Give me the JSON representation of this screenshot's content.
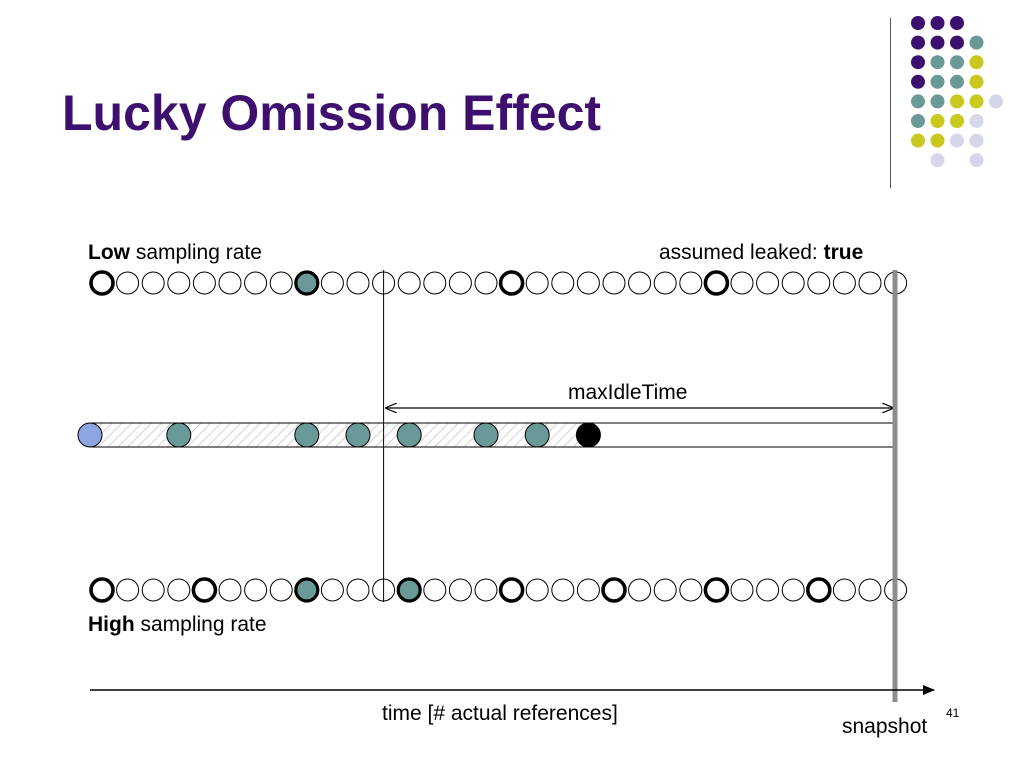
{
  "title": "Lucky Omission Effect",
  "labels": {
    "low_bold": "Low",
    "low_rest": " sampling rate",
    "leaked_prefix": "assumed leaked: ",
    "leaked_value": "true",
    "high_bold": "High",
    "high_rest": " sampling rate",
    "max_idle": "maxIdleTime",
    "time_axis": "time [# actual references]",
    "snapshot": "snapshot",
    "page_number": "41"
  },
  "colors": {
    "title": "#3d1070",
    "purple": "#3d1070",
    "teal": "#6a9a98",
    "yellow": "#c8c81e",
    "lavender": "#d6d6ea",
    "blue": "#8ba6e0",
    "gray_bar": "#8c8c8c"
  },
  "diagram": {
    "references_per_row": 32,
    "low_rate_row": {
      "sampled": [
        0,
        8,
        16,
        24,
        31
      ],
      "sampled_teal": [
        8
      ],
      "sampled_bold": [
        0,
        16,
        24
      ]
    },
    "high_rate_row": {
      "sampled": [
        0,
        4,
        8,
        12,
        16,
        20,
        24,
        28,
        31
      ],
      "sampled_teal": [
        8,
        12
      ],
      "sampled_bold": [
        0,
        4,
        16,
        20,
        24,
        28
      ]
    },
    "object_lifetime": {
      "allocation_color": "blue",
      "teal_references": [
        3,
        8,
        10,
        12,
        15,
        17
      ],
      "last_reference": 19
    }
  },
  "decoration": {
    "rows": [
      [
        "purple",
        "purple",
        "purple"
      ],
      [
        "purple",
        "purple",
        "purple",
        "teal"
      ],
      [
        "purple",
        "teal",
        "teal",
        "yellow"
      ],
      [
        "purple",
        "teal",
        "teal",
        "yellow"
      ],
      [
        "teal",
        "teal",
        "yellow",
        "yellow",
        "lavender"
      ],
      [
        "teal",
        "yellow",
        "yellow",
        "lavender"
      ],
      [
        "yellow",
        "yellow",
        "lavender",
        "lavender"
      ],
      [
        "lavender",
        "lavender"
      ]
    ]
  }
}
